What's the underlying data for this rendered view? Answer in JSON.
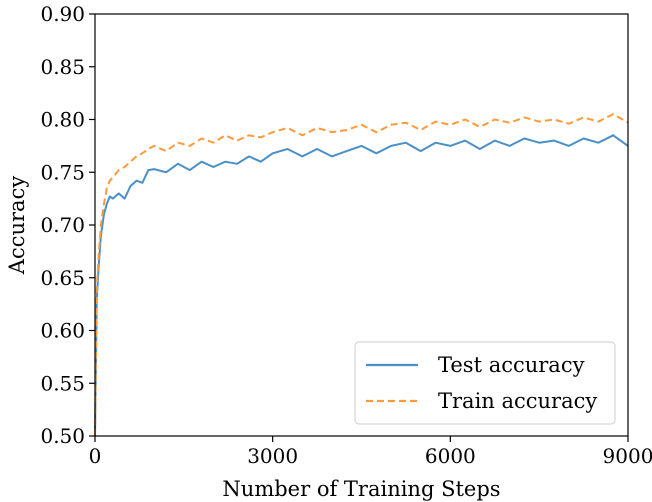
{
  "chart_data": {
    "type": "line",
    "title": "",
    "xlabel": "Number of Training Steps",
    "ylabel": "Accuracy",
    "xlim": [
      0,
      9000
    ],
    "ylim": [
      0.5,
      0.9
    ],
    "xticks": [
      "0",
      "3000",
      "6000",
      "9000"
    ],
    "yticks": [
      "0.50",
      "0.55",
      "0.60",
      "0.65",
      "0.70",
      "0.75",
      "0.80",
      "0.85",
      "0.90"
    ],
    "grid": false,
    "legend": {
      "position": "bottom-right"
    },
    "series": [
      {
        "name": "Test accuracy",
        "color": "#4a90c8",
        "style": "solid",
        "x": [
          0,
          30,
          60,
          100,
          150,
          200,
          250,
          300,
          400,
          500,
          600,
          700,
          800,
          900,
          1000,
          1200,
          1400,
          1600,
          1800,
          2000,
          2200,
          2400,
          2600,
          2800,
          3000,
          3250,
          3500,
          3750,
          4000,
          4250,
          4500,
          4750,
          5000,
          5250,
          5500,
          5750,
          6000,
          6250,
          6500,
          6750,
          7000,
          7250,
          7500,
          7750,
          8000,
          8250,
          8500,
          8750,
          9000
        ],
        "y": [
          0.5,
          0.63,
          0.66,
          0.69,
          0.71,
          0.72,
          0.727,
          0.725,
          0.73,
          0.725,
          0.737,
          0.742,
          0.74,
          0.752,
          0.753,
          0.75,
          0.758,
          0.752,
          0.76,
          0.755,
          0.76,
          0.758,
          0.765,
          0.76,
          0.768,
          0.772,
          0.765,
          0.772,
          0.765,
          0.77,
          0.775,
          0.768,
          0.775,
          0.778,
          0.77,
          0.778,
          0.775,
          0.78,
          0.772,
          0.78,
          0.775,
          0.782,
          0.778,
          0.78,
          0.775,
          0.782,
          0.778,
          0.785,
          0.775
        ]
      },
      {
        "name": "Train accuracy",
        "color": "#ff9a3c",
        "style": "dashed",
        "x": [
          0,
          30,
          60,
          100,
          150,
          200,
          250,
          300,
          400,
          500,
          600,
          700,
          800,
          900,
          1000,
          1200,
          1400,
          1600,
          1800,
          2000,
          2200,
          2400,
          2600,
          2800,
          3000,
          3250,
          3500,
          3750,
          4000,
          4250,
          4500,
          4750,
          5000,
          5250,
          5500,
          5750,
          6000,
          6250,
          6500,
          6750,
          7000,
          7250,
          7500,
          7750,
          8000,
          8250,
          8500,
          8750,
          9000
        ],
        "y": [
          0.5,
          0.64,
          0.67,
          0.7,
          0.72,
          0.735,
          0.742,
          0.745,
          0.752,
          0.755,
          0.76,
          0.765,
          0.768,
          0.772,
          0.775,
          0.77,
          0.778,
          0.775,
          0.782,
          0.778,
          0.785,
          0.78,
          0.785,
          0.783,
          0.788,
          0.792,
          0.785,
          0.792,
          0.788,
          0.79,
          0.795,
          0.788,
          0.795,
          0.797,
          0.79,
          0.798,
          0.795,
          0.8,
          0.793,
          0.8,
          0.797,
          0.802,
          0.798,
          0.8,
          0.796,
          0.802,
          0.798,
          0.805,
          0.797
        ]
      }
    ]
  }
}
